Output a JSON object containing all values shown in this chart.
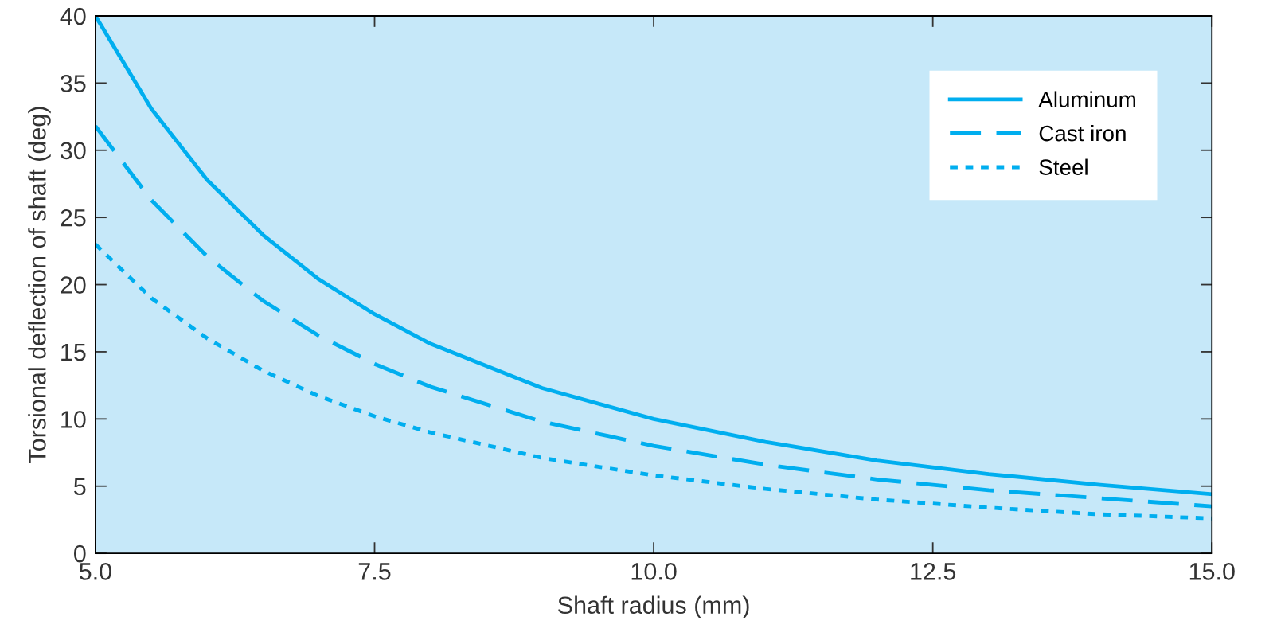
{
  "chart_data": {
    "type": "line",
    "xlabel": "Shaft radius (mm)",
    "ylabel": "Torsional deflection of shaft (deg)",
    "x": [
      5,
      5.5,
      6,
      6.5,
      7,
      7.5,
      8,
      9,
      10,
      11,
      12,
      13,
      14,
      15
    ],
    "series": [
      {
        "name": "Aluminum",
        "color": "#00aeef",
        "line_style": "solid",
        "values": [
          40,
          33.1,
          27.8,
          23.7,
          20.4,
          17.8,
          15.6,
          12.3,
          10,
          8.3,
          6.9,
          5.9,
          5.1,
          4.4
        ]
      },
      {
        "name": "Cast iron",
        "color": "#00aeef",
        "line_style": "dashed",
        "values": [
          31.8,
          26.3,
          22.1,
          18.8,
          16.2,
          14.1,
          12.4,
          9.8,
          8.0,
          6.6,
          5.5,
          4.7,
          4.1,
          3.5
        ]
      },
      {
        "name": "Steel",
        "color": "#00aeef",
        "line_style": "dotted",
        "values": [
          23,
          19,
          16,
          13.6,
          11.7,
          10.2,
          9.0,
          7.1,
          5.8,
          4.8,
          4.0,
          3.4,
          2.9,
          2.6
        ]
      }
    ],
    "xlim": [
      5,
      15
    ],
    "ylim": [
      0,
      40
    ],
    "xticks": [
      {
        "value": 5,
        "label": "5.0"
      },
      {
        "value": 7.5,
        "label": "7.5"
      },
      {
        "value": 10,
        "label": "10.0"
      },
      {
        "value": 12.5,
        "label": "12.5"
      },
      {
        "value": 15,
        "label": "15.0"
      }
    ],
    "yticks": [
      0,
      5,
      10,
      15,
      20,
      25,
      30,
      35,
      40
    ],
    "grid": false,
    "legend": "top right",
    "marker": "none"
  }
}
